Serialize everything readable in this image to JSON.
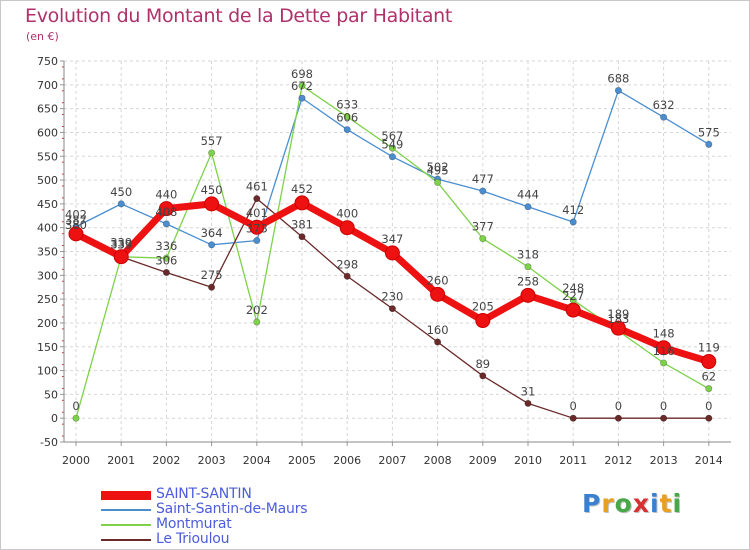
{
  "header": {
    "title": "Evolution du Montant de la Dette par Habitant",
    "subtitle": "(en €)"
  },
  "logo": {
    "letters": [
      "P",
      "r",
      "o",
      "x",
      "i",
      "t",
      "i"
    ],
    "colors": [
      "#3a7fd0",
      "#e8a020",
      "#48a848",
      "#d83030",
      "#3a7fd0",
      "#e8a020",
      "#48a848"
    ]
  },
  "chart_data": {
    "type": "line",
    "title": "Evolution du Montant de la Dette par Habitant",
    "subtitle": "(en €)",
    "xlabel": "",
    "ylabel": "",
    "categories": [
      "2000",
      "2001",
      "2002",
      "2003",
      "2004",
      "2005",
      "2006",
      "2007",
      "2008",
      "2009",
      "2010",
      "2011",
      "2012",
      "2013",
      "2014"
    ],
    "ylim": [
      -50,
      750
    ],
    "yticks": [
      -50,
      0,
      50,
      100,
      150,
      200,
      250,
      300,
      350,
      400,
      450,
      500,
      550,
      600,
      650,
      700,
      750
    ],
    "grid": true,
    "legend_position": "bottom-left",
    "series": [
      {
        "name": "Saint-Santin-de-Maurs",
        "color": "#4a8ed0",
        "values": [
          402,
          450,
          408,
          364,
          373,
          672,
          606,
          549,
          502,
          477,
          444,
          412,
          688,
          632,
          575
        ]
      },
      {
        "name": "Montmurat",
        "color": "#7ed24a",
        "values": [
          0,
          339,
          336,
          557,
          202,
          698,
          633,
          567,
          495,
          377,
          318,
          248,
          183,
          116,
          62
        ]
      },
      {
        "name": "Le Trioulou",
        "color": "#6a2a2a",
        "values": [
          380,
          339,
          306,
          275,
          461,
          381,
          298,
          230,
          160,
          89,
          31,
          0,
          0,
          0,
          0
        ]
      },
      {
        "name": "SAINT-SANTIN",
        "color": "#ee1111",
        "values": [
          387,
          339,
          440,
          450,
          401,
          452,
          400,
          347,
          260,
          205,
          258,
          227,
          189,
          148,
          119
        ]
      }
    ]
  }
}
